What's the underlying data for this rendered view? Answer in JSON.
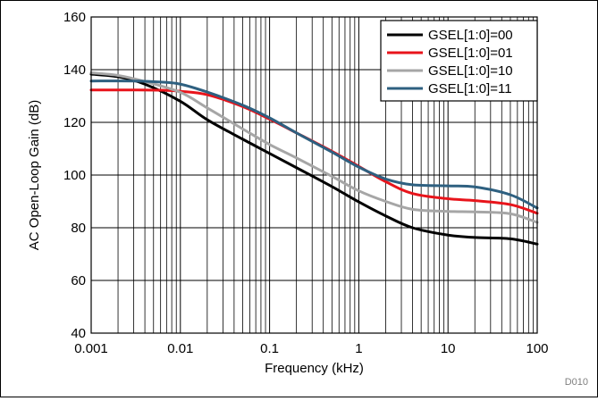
{
  "chart_data": {
    "type": "line",
    "title": "",
    "xlabel": "Frequency (kHz)",
    "ylabel": "AC Open-Loop Gain (dB)",
    "xscale": "log",
    "xlim": [
      0.001,
      100
    ],
    "ylim": [
      40,
      160
    ],
    "xticks": [
      {
        "value": 0.001,
        "label": "0.001"
      },
      {
        "value": 0.01,
        "label": "0.01"
      },
      {
        "value": 0.1,
        "label": "0.1"
      },
      {
        "value": 1,
        "label": "1"
      },
      {
        "value": 10,
        "label": "10"
      },
      {
        "value": 100,
        "label": "100"
      }
    ],
    "yticks": [
      {
        "value": 40,
        "label": "40"
      },
      {
        "value": 60,
        "label": "60"
      },
      {
        "value": 80,
        "label": "80"
      },
      {
        "value": 100,
        "label": "100"
      },
      {
        "value": 120,
        "label": "120"
      },
      {
        "value": 140,
        "label": "140"
      },
      {
        "value": 160,
        "label": "160"
      }
    ],
    "grid": true,
    "legend_position": "top-right",
    "series": [
      {
        "name": "GSEL[1:0]=00",
        "color": "#000000",
        "points": [
          [
            0.001,
            138.3
          ],
          [
            0.002,
            137.3
          ],
          [
            0.004,
            134.5
          ],
          [
            0.01,
            128
          ],
          [
            0.02,
            121
          ],
          [
            0.05,
            113.6
          ],
          [
            0.1,
            108.2
          ],
          [
            0.2,
            102.8
          ],
          [
            0.5,
            95.6
          ],
          [
            1,
            89.8
          ],
          [
            2,
            84.5
          ],
          [
            4,
            80
          ],
          [
            10,
            77.2
          ],
          [
            20,
            76.3
          ],
          [
            50,
            75.8
          ],
          [
            100,
            73.8
          ]
        ]
      },
      {
        "name": "GSEL[1:0]=01",
        "color": "#e8141b",
        "points": [
          [
            0.001,
            132.3
          ],
          [
            0.003,
            132.3
          ],
          [
            0.006,
            132.2
          ],
          [
            0.01,
            131.8
          ],
          [
            0.02,
            130.5
          ],
          [
            0.05,
            126
          ],
          [
            0.1,
            121.2
          ],
          [
            0.2,
            116
          ],
          [
            0.5,
            109
          ],
          [
            1,
            103.3
          ],
          [
            2,
            97.5
          ],
          [
            4,
            93
          ],
          [
            10,
            91
          ],
          [
            20,
            90.3
          ],
          [
            50,
            88.8
          ],
          [
            100,
            85.5
          ]
        ]
      },
      {
        "name": "GSEL[1:0]=10",
        "color": "#a6a6a6",
        "points": [
          [
            0.001,
            138.8
          ],
          [
            0.002,
            137.8
          ],
          [
            0.004,
            135.5
          ],
          [
            0.01,
            131.4
          ],
          [
            0.02,
            125.5
          ],
          [
            0.05,
            117.5
          ],
          [
            0.1,
            111.6
          ],
          [
            0.2,
            106.5
          ],
          [
            0.5,
            99.5
          ],
          [
            1,
            94
          ],
          [
            2,
            90
          ],
          [
            4,
            87
          ],
          [
            10,
            86.2
          ],
          [
            20,
            86
          ],
          [
            50,
            85.3
          ],
          [
            100,
            82
          ]
        ]
      },
      {
        "name": "GSEL[1:0]=11",
        "color": "#2e6080",
        "points": [
          [
            0.001,
            135.7
          ],
          [
            0.003,
            135.7
          ],
          [
            0.006,
            135.3
          ],
          [
            0.01,
            134.5
          ],
          [
            0.02,
            131.5
          ],
          [
            0.05,
            126.5
          ],
          [
            0.1,
            121.7
          ],
          [
            0.2,
            116
          ],
          [
            0.5,
            108.7
          ],
          [
            1,
            103
          ],
          [
            2,
            98.5
          ],
          [
            4,
            96.3
          ],
          [
            10,
            95.9
          ],
          [
            20,
            95.5
          ],
          [
            50,
            92.5
          ],
          [
            100,
            87.5
          ]
        ]
      }
    ]
  },
  "figure_id": "D010"
}
